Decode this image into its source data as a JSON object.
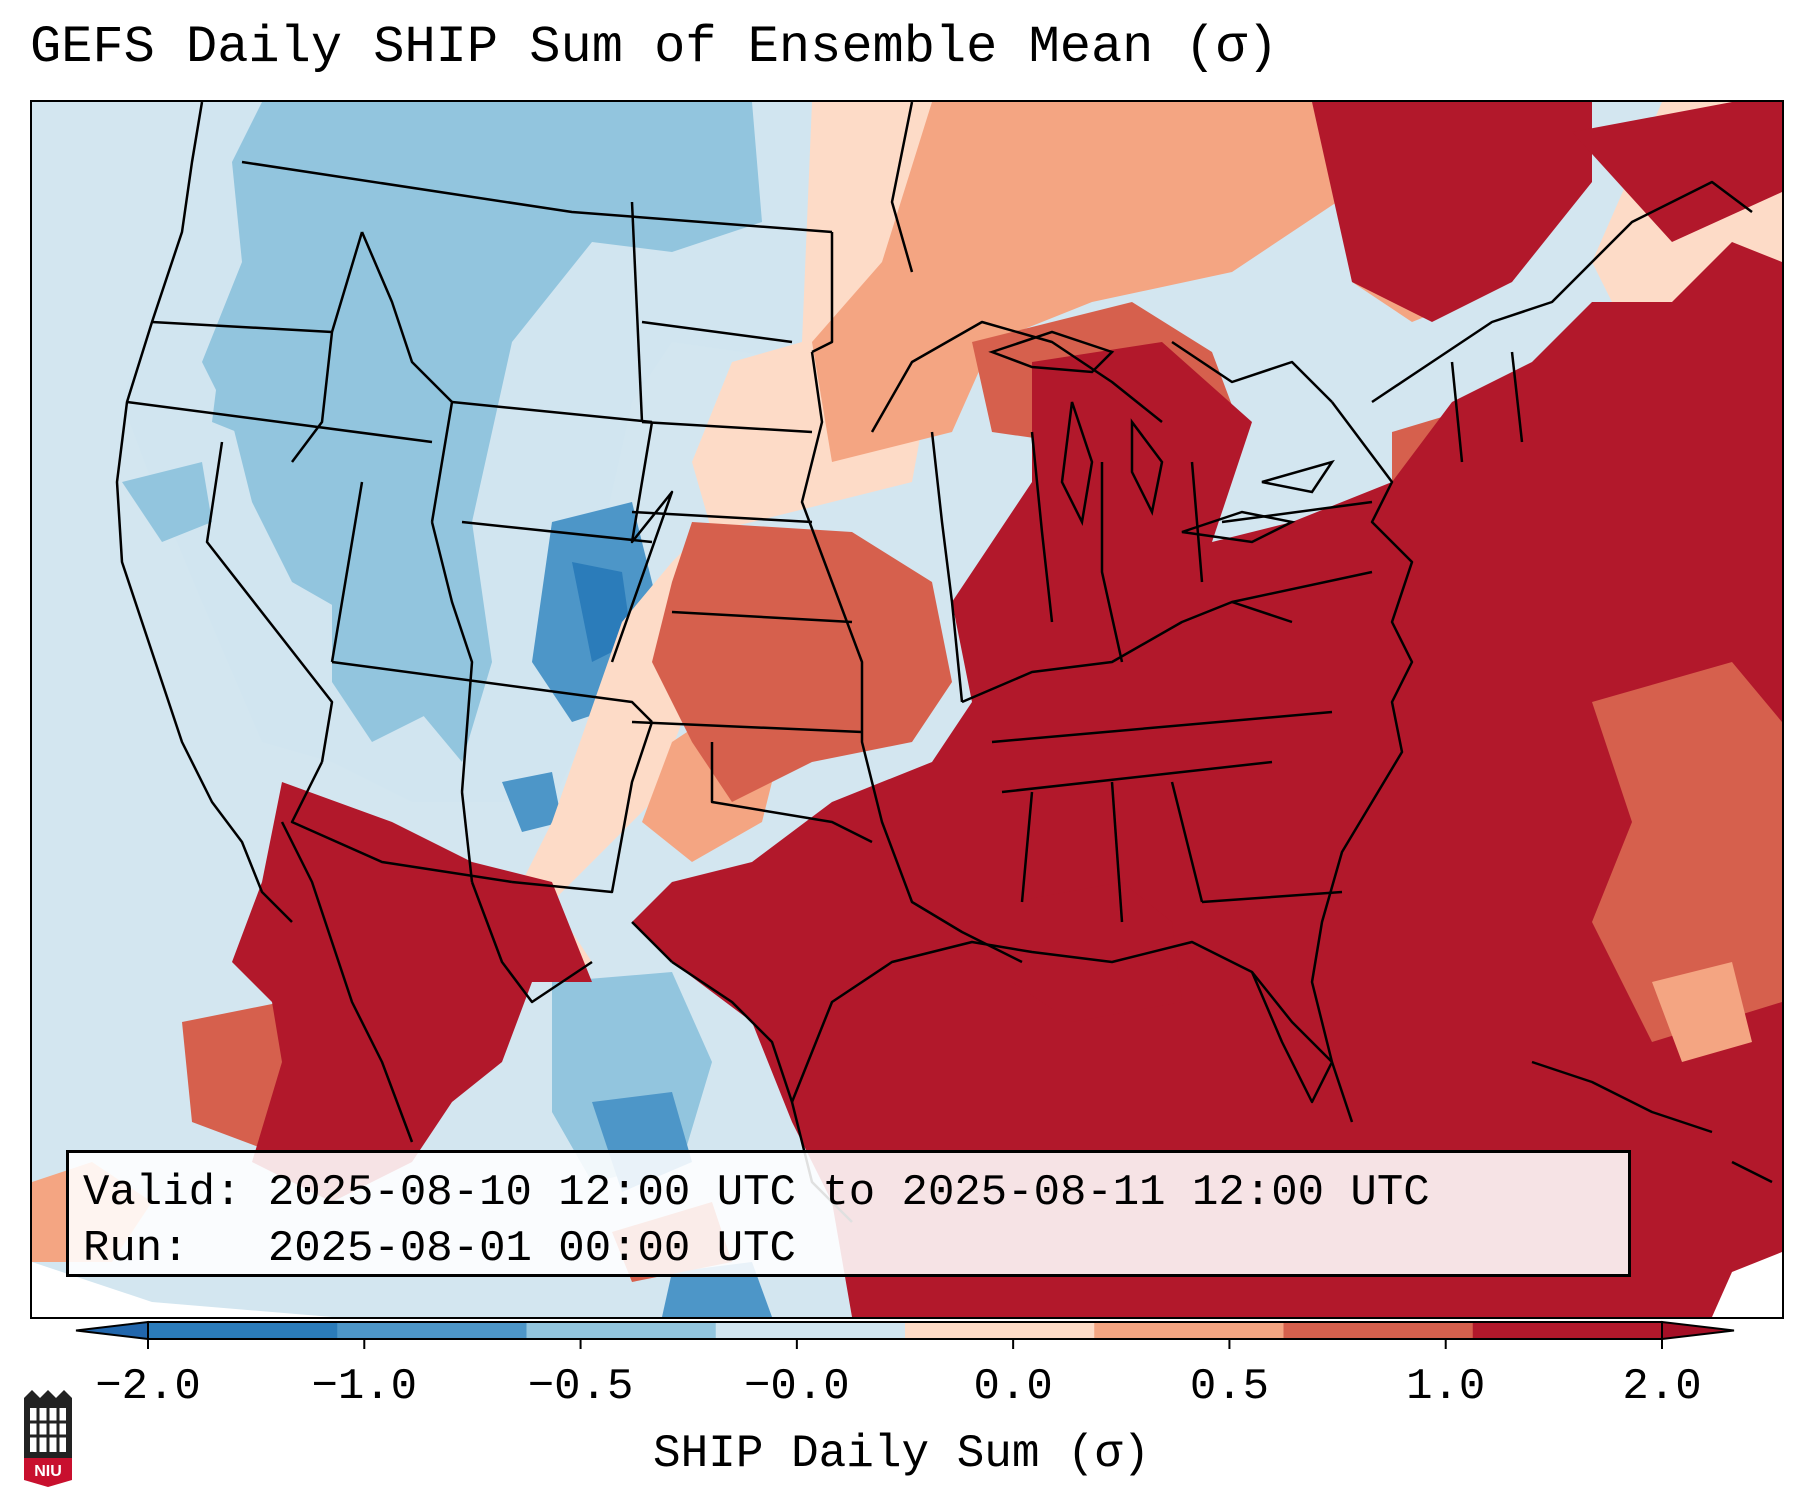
{
  "title": "GEFS Daily SHIP Sum of Ensemble Mean (σ)",
  "info": {
    "valid_label": "Valid:",
    "valid_value": "2025-08-10 12:00 UTC to 2025-08-11 12:00 UTC",
    "run_label": "Run:",
    "run_value": "2025-08-01 00:00 UTC"
  },
  "colorbar": {
    "label": "SHIP Daily Sum (σ)",
    "ticks": [
      "−2.0",
      "−1.0",
      "−0.5",
      "−0.0",
      "0.0",
      "0.5",
      "1.0",
      "2.0"
    ],
    "colors": [
      "#2b7cba",
      "#4d96c8",
      "#92c5de",
      "#d1e5f0",
      "#fddbc7",
      "#f4a582",
      "#d6604d",
      "#b2182b"
    ],
    "under_color": "#2166ac",
    "over_color": "#a50f26"
  },
  "logo_text": "NIU"
}
